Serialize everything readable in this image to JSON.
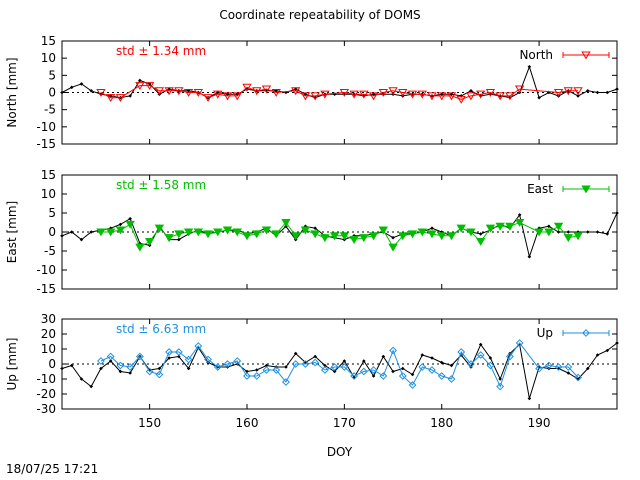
{
  "title": "Coordinate repeatability of DOMS",
  "timestamp": "18/07/25 17:21",
  "chart_data": {
    "type": "line",
    "xlabel": "DOY",
    "xlim": [
      141,
      198
    ],
    "xticks": [
      150,
      160,
      170,
      180,
      190
    ],
    "panels": [
      {
        "name": "north",
        "ylabel": "North [mm]",
        "ylim": [
          -15,
          15
        ],
        "yticks": [
          -15,
          -10,
          -5,
          0,
          5,
          10,
          15
        ],
        "color": "#ff0000",
        "marker": "triangle-down-open",
        "legend": "North",
        "std_label": "std ± 1.34 mm",
        "raw": {
          "x": [
            141,
            142,
            143,
            144,
            145,
            146,
            147,
            148,
            149,
            150,
            151,
            152,
            153,
            154,
            155,
            156,
            157,
            158,
            159,
            160,
            161,
            162,
            163,
            164,
            165,
            166,
            167,
            168,
            169,
            170,
            171,
            172,
            173,
            174,
            175,
            176,
            177,
            178,
            179,
            180,
            181,
            182,
            183,
            184,
            185,
            186,
            187,
            188,
            189,
            190,
            191,
            192,
            193,
            194,
            195,
            196,
            197,
            198
          ],
          "y": [
            0,
            1.5,
            2.5,
            0.5,
            -0.5,
            -1,
            -1.5,
            -1,
            3.5,
            2.5,
            -0.5,
            1,
            0.5,
            0.5,
            0,
            -1.5,
            0,
            -0.5,
            -0.5,
            1,
            0.5,
            0.5,
            0.5,
            0,
            1,
            -0.5,
            -1.5,
            -0.5,
            -0.5,
            -0.5,
            -0.5,
            -1,
            -0.5,
            -0.5,
            -0.5,
            -1,
            -0.5,
            -0.5,
            -1,
            -0.5,
            -0.5,
            -1,
            0.5,
            -1,
            -0.5,
            -1,
            -1.5,
            0,
            7.5,
            -1.5,
            0,
            -1,
            0.5,
            -1,
            0.5,
            0,
            0,
            1
          ]
        },
        "marked": {
          "x": [
            145,
            146,
            147,
            149,
            150,
            151,
            152,
            153,
            154,
            155,
            156,
            157,
            158,
            159,
            160,
            161,
            162,
            163,
            165,
            166,
            167,
            168,
            170,
            171,
            172,
            173,
            174,
            175,
            176,
            177,
            178,
            179,
            180,
            181,
            182,
            183,
            184,
            185,
            186,
            187,
            188,
            192,
            193,
            194
          ],
          "y": [
            0,
            -1.5,
            -1.5,
            2,
            2,
            0.5,
            0.5,
            0.5,
            0,
            0,
            -1.5,
            -0.5,
            -1,
            -1,
            1.5,
            0.5,
            1,
            0,
            0.5,
            -1,
            -1,
            -0.5,
            0,
            -0.5,
            -0.5,
            -1,
            0,
            0.5,
            0,
            -0.5,
            -0.5,
            -1,
            -1,
            -1,
            -2,
            -1,
            -0.5,
            0,
            -1,
            -1,
            1,
            0,
            0.5,
            0.5
          ]
        }
      },
      {
        "name": "east",
        "ylabel": "East [mm]",
        "ylim": [
          -15,
          15
        ],
        "yticks": [
          -15,
          -10,
          -5,
          0,
          5,
          10,
          15
        ],
        "color": "#00bf00",
        "marker": "triangle-down-filled",
        "legend": "East",
        "std_label": "std ± 1.58 mm",
        "raw": {
          "x": [
            141,
            142,
            143,
            144,
            145,
            146,
            147,
            148,
            149,
            150,
            151,
            152,
            153,
            154,
            155,
            156,
            157,
            158,
            159,
            160,
            161,
            162,
            163,
            164,
            165,
            166,
            167,
            168,
            169,
            170,
            171,
            172,
            173,
            174,
            175,
            176,
            177,
            178,
            179,
            180,
            181,
            182,
            183,
            184,
            185,
            186,
            187,
            188,
            189,
            190,
            191,
            192,
            193,
            194,
            195,
            196,
            197,
            198
          ],
          "y": [
            -1,
            0,
            -2,
            0,
            0.5,
            1,
            2,
            3.5,
            -3,
            -3.5,
            1.5,
            -2,
            -2,
            -0.5,
            0.5,
            -0.5,
            0,
            0.5,
            0.5,
            -0.5,
            0,
            1,
            -1,
            1.5,
            -2,
            1.5,
            1,
            -1,
            -1.5,
            -2,
            -1,
            -1,
            -0.5,
            0,
            -1.5,
            -0.5,
            -0.5,
            0,
            1,
            0,
            -1,
            1,
            0,
            -0.5,
            0.5,
            2,
            1,
            4.5,
            -6.5,
            1,
            1.5,
            0,
            0,
            0,
            0,
            0,
            -0.5,
            5
          ]
        },
        "marked": {
          "x": [
            145,
            146,
            147,
            148,
            149,
            150,
            151,
            152,
            153,
            154,
            155,
            156,
            157,
            158,
            159,
            160,
            161,
            162,
            163,
            164,
            165,
            166,
            167,
            168,
            169,
            170,
            171,
            172,
            173,
            174,
            175,
            176,
            177,
            178,
            179,
            180,
            181,
            182,
            183,
            184,
            185,
            186,
            187,
            188,
            190,
            191,
            192,
            193,
            194
          ],
          "y": [
            0,
            0,
            0.5,
            2,
            -4,
            -2.5,
            1,
            -1.5,
            -0.5,
            0,
            0,
            -0.5,
            0,
            0.5,
            0,
            -1,
            -0.5,
            0.5,
            -0.5,
            2.5,
            -1,
            0.5,
            -0.5,
            -1.5,
            -1,
            -1,
            -2,
            -1.5,
            -1,
            0.5,
            -4,
            -1,
            -0.5,
            0,
            -0.5,
            -1,
            -1,
            1,
            0,
            -2.5,
            1,
            1.5,
            1.5,
            2.5,
            0,
            0,
            1.5,
            -1.5,
            -1
          ]
        }
      },
      {
        "name": "up",
        "ylabel": "Up [mm]",
        "ylim": [
          -30,
          30
        ],
        "yticks": [
          -30,
          -20,
          -10,
          0,
          10,
          20,
          30
        ],
        "color": "#1e90e0",
        "marker": "diamond-open",
        "legend": "Up",
        "std_label": "std ± 6.63 mm",
        "raw": {
          "x": [
            141,
            142,
            143,
            144,
            145,
            146,
            147,
            148,
            149,
            150,
            151,
            152,
            153,
            154,
            155,
            156,
            157,
            158,
            159,
            160,
            161,
            162,
            163,
            164,
            165,
            166,
            167,
            168,
            169,
            170,
            171,
            172,
            173,
            174,
            175,
            176,
            177,
            178,
            179,
            180,
            181,
            182,
            183,
            184,
            185,
            186,
            187,
            188,
            189,
            190,
            191,
            192,
            193,
            194,
            195,
            196,
            197,
            198
          ],
          "y": [
            -3,
            -1,
            -10,
            -15,
            -3,
            2,
            -5,
            -6,
            5,
            -4,
            -3,
            4,
            5,
            -3,
            11,
            1,
            -2,
            -2,
            0,
            -5,
            -4,
            -1,
            -2,
            -2,
            7,
            1,
            5,
            -1,
            -5,
            2,
            -9,
            2,
            -8,
            5,
            -5,
            -3,
            -7,
            6,
            4,
            1,
            -1,
            6,
            -2,
            13,
            4,
            -10,
            7,
            13,
            -23,
            -2,
            -3,
            -3,
            -6,
            -10,
            -3,
            6,
            9,
            14
          ]
        },
        "marked": {
          "x": [
            145,
            146,
            147,
            148,
            149,
            150,
            151,
            152,
            153,
            154,
            155,
            156,
            157,
            158,
            159,
            160,
            161,
            162,
            163,
            164,
            165,
            166,
            167,
            168,
            169,
            170,
            171,
            172,
            173,
            174,
            175,
            176,
            177,
            178,
            179,
            180,
            181,
            182,
            183,
            184,
            185,
            186,
            187,
            188,
            190,
            191,
            192,
            193,
            194
          ],
          "y": [
            2,
            5,
            -1,
            -2,
            5,
            -5,
            -7,
            8,
            8,
            3,
            12,
            3,
            -2,
            0,
            2,
            -8,
            -8,
            -4,
            -4,
            -12,
            0,
            0,
            1,
            -4,
            -2,
            -2,
            -8,
            -5,
            -4,
            -8,
            9,
            -8,
            -14,
            -2,
            -4,
            -8,
            -10,
            8,
            0,
            6,
            -1,
            -15,
            5,
            14,
            -3,
            -1,
            -2,
            -2,
            -9
          ]
        }
      }
    ]
  }
}
